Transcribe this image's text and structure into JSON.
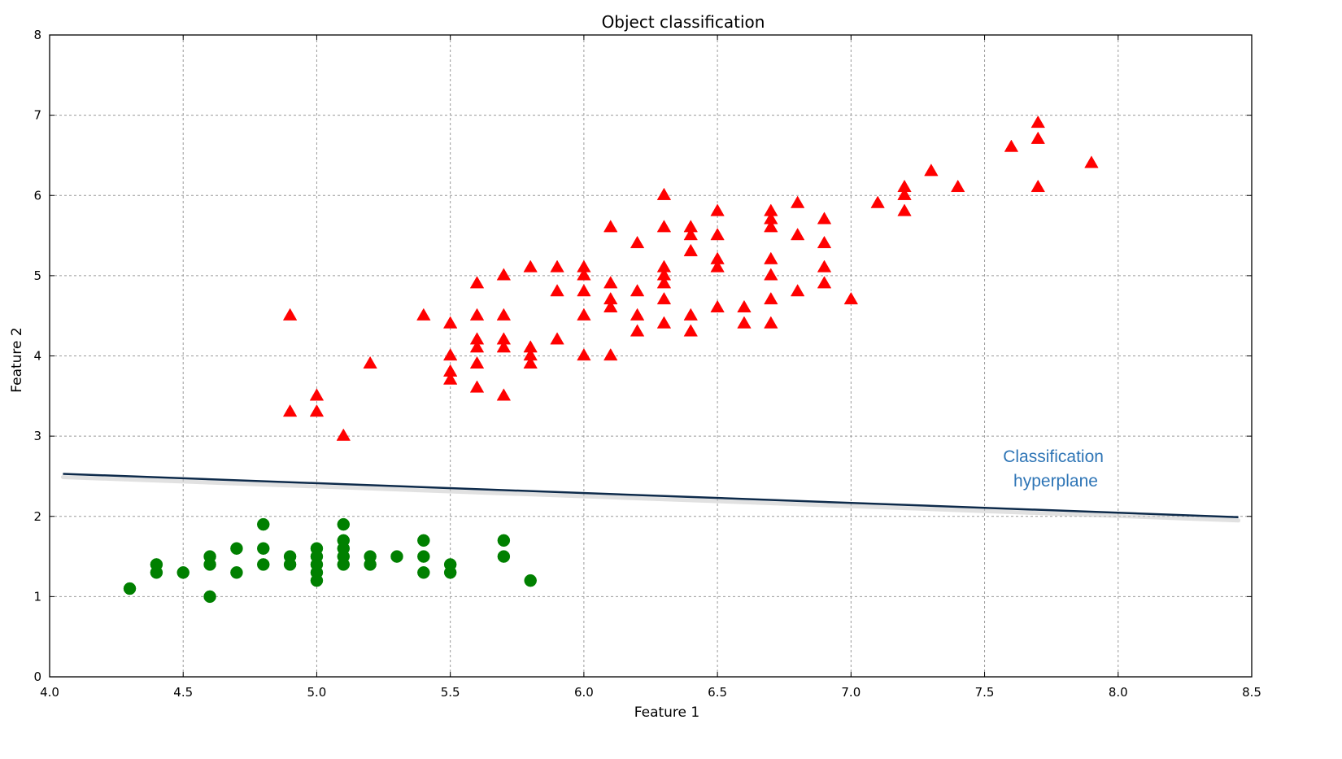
{
  "chart_data": {
    "type": "scatter",
    "title": "Object classification",
    "xlabel": "Feature 1",
    "ylabel": "Feature 2",
    "xlim": [
      4.0,
      8.5
    ],
    "ylim": [
      0,
      8
    ],
    "x_ticks": [
      "4.0",
      "4.5",
      "5.0",
      "5.5",
      "6.0",
      "6.5",
      "7.0",
      "7.5",
      "8.0",
      "8.5"
    ],
    "y_ticks": [
      "0",
      "1",
      "2",
      "3",
      "4",
      "5",
      "6",
      "7",
      "8"
    ],
    "grid": true,
    "series": [
      {
        "marker": "triangle",
        "color": "#ff0000",
        "points": [
          [
            4.9,
            4.5
          ],
          [
            4.9,
            3.3
          ],
          [
            5.0,
            3.5
          ],
          [
            5.0,
            3.3
          ],
          [
            5.1,
            3.0
          ],
          [
            5.2,
            3.9
          ],
          [
            5.4,
            4.5
          ],
          [
            5.5,
            4.4
          ],
          [
            5.5,
            4.0
          ],
          [
            5.5,
            3.8
          ],
          [
            5.5,
            3.7
          ],
          [
            5.6,
            4.9
          ],
          [
            5.6,
            4.5
          ],
          [
            5.6,
            4.2
          ],
          [
            5.6,
            4.1
          ],
          [
            5.6,
            3.9
          ],
          [
            5.6,
            3.6
          ],
          [
            5.7,
            5.0
          ],
          [
            5.7,
            4.5
          ],
          [
            5.7,
            4.2
          ],
          [
            5.7,
            4.1
          ],
          [
            5.7,
            3.5
          ],
          [
            5.8,
            5.1
          ],
          [
            5.8,
            4.1
          ],
          [
            5.8,
            4.0
          ],
          [
            5.8,
            3.9
          ],
          [
            5.9,
            5.1
          ],
          [
            5.9,
            4.8
          ],
          [
            5.9,
            4.2
          ],
          [
            6.0,
            5.1
          ],
          [
            6.0,
            5.0
          ],
          [
            6.0,
            4.8
          ],
          [
            6.0,
            4.5
          ],
          [
            6.0,
            4.0
          ],
          [
            6.1,
            5.6
          ],
          [
            6.1,
            4.9
          ],
          [
            6.1,
            4.7
          ],
          [
            6.1,
            4.6
          ],
          [
            6.1,
            4.0
          ],
          [
            6.2,
            5.4
          ],
          [
            6.2,
            4.8
          ],
          [
            6.2,
            4.5
          ],
          [
            6.2,
            4.3
          ],
          [
            6.3,
            6.0
          ],
          [
            6.3,
            5.6
          ],
          [
            6.3,
            5.1
          ],
          [
            6.3,
            5.0
          ],
          [
            6.3,
            4.9
          ],
          [
            6.3,
            4.7
          ],
          [
            6.3,
            4.4
          ],
          [
            6.4,
            5.6
          ],
          [
            6.4,
            5.5
          ],
          [
            6.4,
            5.3
          ],
          [
            6.4,
            4.5
          ],
          [
            6.4,
            4.3
          ],
          [
            6.5,
            5.8
          ],
          [
            6.5,
            5.5
          ],
          [
            6.5,
            5.2
          ],
          [
            6.5,
            5.1
          ],
          [
            6.5,
            4.6
          ],
          [
            6.6,
            4.6
          ],
          [
            6.6,
            4.4
          ],
          [
            6.7,
            5.8
          ],
          [
            6.7,
            5.7
          ],
          [
            6.7,
            5.6
          ],
          [
            6.7,
            5.2
          ],
          [
            6.7,
            5.0
          ],
          [
            6.7,
            4.7
          ],
          [
            6.7,
            4.4
          ],
          [
            6.8,
            5.9
          ],
          [
            6.8,
            5.5
          ],
          [
            6.8,
            4.8
          ],
          [
            6.9,
            5.7
          ],
          [
            6.9,
            5.4
          ],
          [
            6.9,
            5.1
          ],
          [
            6.9,
            4.9
          ],
          [
            7.0,
            4.7
          ],
          [
            7.1,
            5.9
          ],
          [
            7.2,
            6.1
          ],
          [
            7.2,
            6.0
          ],
          [
            7.2,
            5.8
          ],
          [
            7.3,
            6.3
          ],
          [
            7.4,
            6.1
          ],
          [
            7.6,
            6.6
          ],
          [
            7.7,
            6.9
          ],
          [
            7.7,
            6.7
          ],
          [
            7.7,
            6.1
          ],
          [
            7.9,
            6.4
          ]
        ]
      },
      {
        "marker": "circle",
        "color": "#008000",
        "points": [
          [
            4.3,
            1.1
          ],
          [
            4.4,
            1.4
          ],
          [
            4.4,
            1.3
          ],
          [
            4.5,
            1.3
          ],
          [
            4.6,
            1.5
          ],
          [
            4.6,
            1.4
          ],
          [
            4.6,
            1.0
          ],
          [
            4.7,
            1.6
          ],
          [
            4.7,
            1.3
          ],
          [
            4.8,
            1.9
          ],
          [
            4.8,
            1.6
          ],
          [
            4.8,
            1.4
          ],
          [
            4.9,
            1.5
          ],
          [
            4.9,
            1.4
          ],
          [
            5.0,
            1.6
          ],
          [
            5.0,
            1.5
          ],
          [
            5.0,
            1.4
          ],
          [
            5.0,
            1.3
          ],
          [
            5.0,
            1.2
          ],
          [
            5.1,
            1.9
          ],
          [
            5.1,
            1.7
          ],
          [
            5.1,
            1.6
          ],
          [
            5.1,
            1.5
          ],
          [
            5.1,
            1.4
          ],
          [
            5.2,
            1.5
          ],
          [
            5.2,
            1.4
          ],
          [
            5.3,
            1.5
          ],
          [
            5.4,
            1.7
          ],
          [
            5.4,
            1.5
          ],
          [
            5.4,
            1.3
          ],
          [
            5.5,
            1.4
          ],
          [
            5.5,
            1.3
          ],
          [
            5.7,
            1.7
          ],
          [
            5.7,
            1.5
          ],
          [
            5.8,
            1.2
          ]
        ]
      }
    ],
    "hyperplane": {
      "color": "#0d2a4a",
      "start": [
        4.05,
        2.53
      ],
      "end": [
        8.45,
        1.99
      ]
    },
    "annotation": {
      "lines": [
        "Classification",
        "hyperplane"
      ],
      "color": "#2e75b6"
    }
  }
}
